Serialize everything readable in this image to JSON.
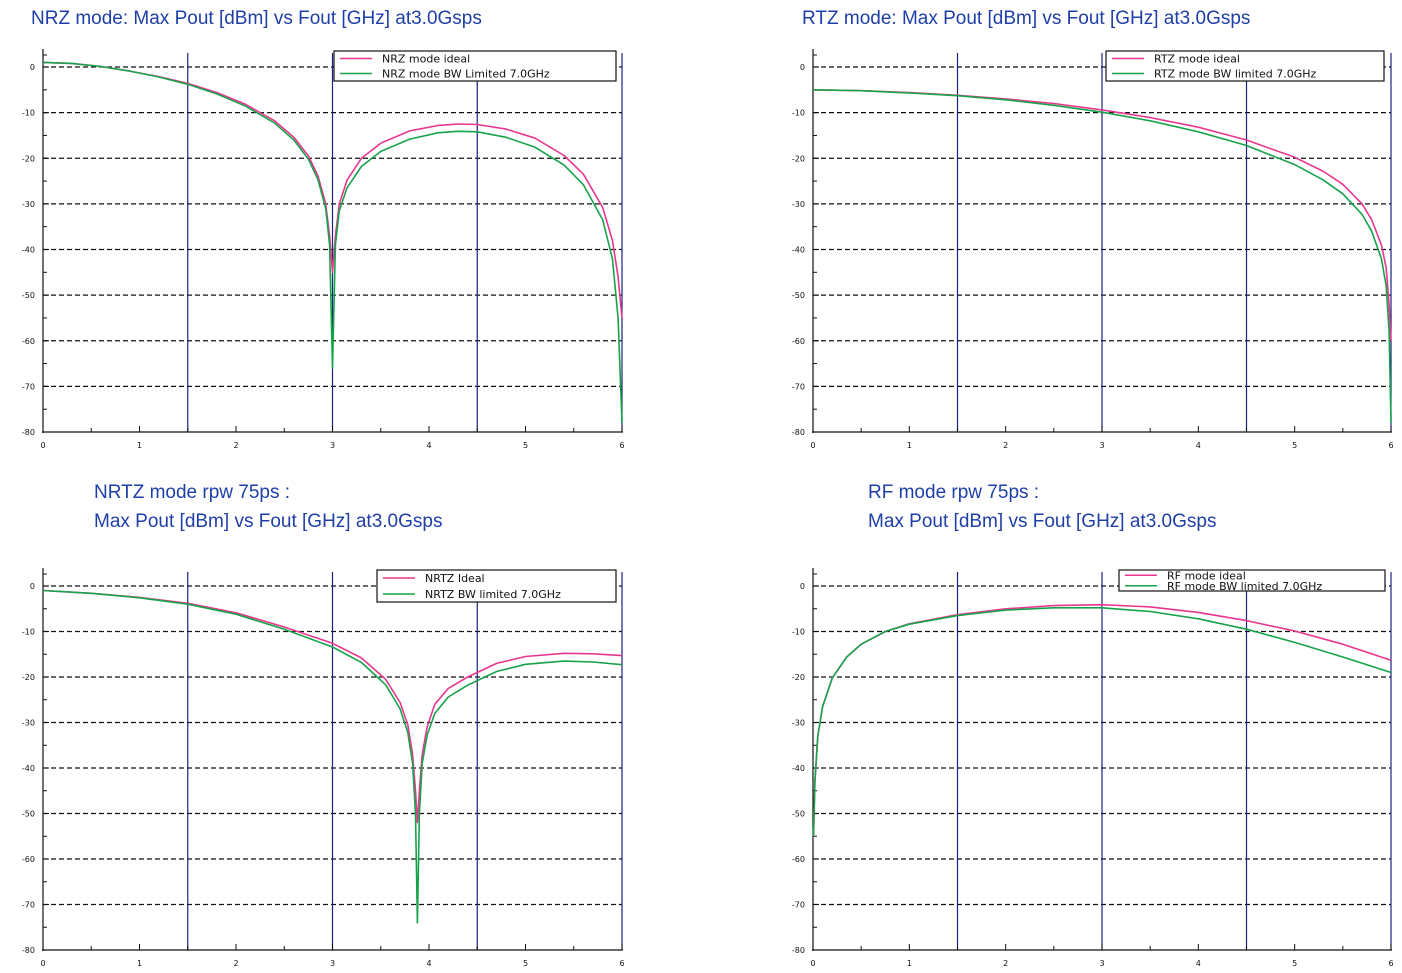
{
  "chart_data": [
    {
      "type": "line",
      "title": [
        "NRZ mode: Max Pout [dBm] vs Fout [GHz] at3.0Gsps"
      ],
      "xlim": [
        0,
        6
      ],
      "ylim": [
        -80,
        0
      ],
      "xticks": [
        "0",
        "1",
        "2",
        "3",
        "4",
        "5",
        "6"
      ],
      "yticks": [
        "0",
        "-10",
        "-20",
        "-30",
        "-40",
        "-50",
        "-60",
        "-70",
        "-80"
      ],
      "vlines": [
        1.5,
        3,
        4.5,
        6
      ],
      "grid": "dashed horizontal",
      "legend_position": "top-right",
      "series": [
        {
          "name": "NRZ mode ideal",
          "color": "#e8368f",
          "x": [
            0,
            0.3,
            0.6,
            0.9,
            1.2,
            1.5,
            1.8,
            2.1,
            2.4,
            2.6,
            2.75,
            2.85,
            2.93,
            2.97,
            3.0,
            3.03,
            3.07,
            3.15,
            3.3,
            3.5,
            3.8,
            4.1,
            4.3,
            4.5,
            4.8,
            5.1,
            5.4,
            5.6,
            5.8,
            5.9,
            5.96,
            6.0
          ],
          "y": [
            1,
            0.8,
            0.1,
            -0.9,
            -2.1,
            -3.6,
            -5.6,
            -8.2,
            -11.8,
            -15.4,
            -19.5,
            -23.9,
            -30,
            -37,
            -45,
            -37,
            -30,
            -24.8,
            -20,
            -16.7,
            -14,
            -12.8,
            -12.5,
            -12.6,
            -13.6,
            -15.6,
            -19.4,
            -23.5,
            -30.8,
            -38,
            -46,
            -55
          ]
        },
        {
          "name": "NRZ mode BW Limited 7.0GHz",
          "color": "#17a34a",
          "x": [
            0,
            0.3,
            0.6,
            0.9,
            1.2,
            1.5,
            1.8,
            2.1,
            2.4,
            2.6,
            2.75,
            2.85,
            2.93,
            2.97,
            3.0,
            3.03,
            3.07,
            3.15,
            3.3,
            3.5,
            3.8,
            4.1,
            4.3,
            4.5,
            4.8,
            5.1,
            5.4,
            5.6,
            5.8,
            5.9,
            5.96,
            6.0
          ],
          "y": [
            1,
            0.8,
            0.1,
            -0.9,
            -2.2,
            -3.8,
            -5.9,
            -8.6,
            -12.3,
            -16,
            -20.2,
            -24.7,
            -31,
            -39,
            -66,
            -39,
            -31.5,
            -26.5,
            -21.8,
            -18.5,
            -15.8,
            -14.4,
            -14.1,
            -14.2,
            -15.4,
            -17.6,
            -21.5,
            -25.8,
            -33.5,
            -42,
            -55,
            -78
          ]
        }
      ]
    },
    {
      "type": "line",
      "title": [
        "RTZ mode: Max Pout [dBm] vs Fout [GHz] at3.0Gsps"
      ],
      "xlim": [
        0,
        6
      ],
      "ylim": [
        -80,
        0
      ],
      "xticks": [
        "0",
        "1",
        "2",
        "3",
        "4",
        "5",
        "6"
      ],
      "yticks": [
        "0",
        "-10",
        "-20",
        "-30",
        "-40",
        "-50",
        "-60",
        "-70",
        "-80"
      ],
      "vlines": [
        1.5,
        3,
        4.5,
        6
      ],
      "grid": "dashed horizontal",
      "legend_position": "top-right",
      "series": [
        {
          "name": "RTZ mode ideal",
          "color": "#e8368f",
          "x": [
            0,
            0.5,
            1,
            1.5,
            2,
            2.5,
            3,
            3.5,
            4,
            4.5,
            5,
            5.3,
            5.5,
            5.7,
            5.8,
            5.9,
            5.95,
            5.98,
            6.0
          ],
          "y": [
            -5,
            -5.2,
            -5.6,
            -6.2,
            -7,
            -8,
            -9.4,
            -11.1,
            -13.2,
            -16,
            -19.8,
            -22.9,
            -25.7,
            -30,
            -33.5,
            -39,
            -44,
            -52,
            -60
          ]
        },
        {
          "name": "RTZ mode BW limited 7.0GHz",
          "color": "#17a34a",
          "x": [
            0,
            0.5,
            1,
            1.5,
            2,
            2.5,
            3,
            3.5,
            4,
            4.5,
            5,
            5.3,
            5.5,
            5.7,
            5.8,
            5.9,
            5.95,
            5.98,
            6.0
          ],
          "y": [
            -5,
            -5.2,
            -5.7,
            -6.3,
            -7.2,
            -8.4,
            -9.9,
            -11.8,
            -14.2,
            -17.2,
            -21.4,
            -24.8,
            -27.8,
            -32.3,
            -36,
            -42,
            -48,
            -58,
            -78
          ]
        }
      ]
    },
    {
      "type": "line",
      "title": [
        "NRTZ mode rpw 75ps :",
        "Max Pout [dBm] vs Fout [GHz] at3.0Gsps"
      ],
      "xlim": [
        0,
        6
      ],
      "ylim": [
        -80,
        0
      ],
      "xticks": [
        "0",
        "1",
        "2",
        "3",
        "4",
        "5",
        "6"
      ],
      "yticks": [
        "0",
        "-10",
        "-20",
        "-30",
        "-40",
        "-50",
        "-60",
        "-70",
        "-80"
      ],
      "vlines": [
        1.5,
        3,
        4.5,
        6
      ],
      "grid": "dashed horizontal",
      "legend_position": "top-right",
      "series": [
        {
          "name": "NRTZ Ideal",
          "color": "#e8368f",
          "x": [
            0,
            0.5,
            1,
            1.5,
            2,
            2.5,
            3,
            3.3,
            3.55,
            3.7,
            3.78,
            3.83,
            3.86,
            3.88,
            3.9,
            3.93,
            3.98,
            4.06,
            4.2,
            4.4,
            4.7,
            5,
            5.4,
            5.7,
            6.0
          ],
          "y": [
            -1,
            -1.6,
            -2.5,
            -3.8,
            -5.9,
            -9,
            -12.6,
            -15.8,
            -20.5,
            -25.6,
            -30.5,
            -37,
            -45,
            -52,
            -45,
            -37,
            -31,
            -26,
            -22.5,
            -20,
            -17,
            -15.5,
            -14.8,
            -14.9,
            -15.3
          ]
        },
        {
          "name": "NRTZ BW limited 7.0GHz",
          "color": "#17a34a",
          "x": [
            0,
            0.5,
            1,
            1.5,
            2,
            2.5,
            3,
            3.3,
            3.55,
            3.7,
            3.78,
            3.83,
            3.86,
            3.88,
            3.9,
            3.93,
            3.98,
            4.06,
            4.2,
            4.4,
            4.7,
            5,
            5.4,
            5.7,
            6.0
          ],
          "y": [
            -1,
            -1.6,
            -2.6,
            -4,
            -6.2,
            -9.5,
            -13.4,
            -16.8,
            -21.7,
            -27,
            -32.2,
            -39,
            -50,
            -74,
            -50,
            -39,
            -32.8,
            -28,
            -24.4,
            -21.8,
            -18.8,
            -17.2,
            -16.5,
            -16.7,
            -17.3
          ]
        }
      ]
    },
    {
      "type": "line",
      "title": [
        "RF mode rpw 75ps :",
        "Max Pout [dBm] vs Fout [GHz] at3.0Gsps"
      ],
      "xlim": [
        0,
        6
      ],
      "ylim": [
        -80,
        0
      ],
      "xticks": [
        "0",
        "1",
        "2",
        "3",
        "4",
        "5",
        "6"
      ],
      "yticks": [
        "0",
        "-10",
        "-20",
        "-30",
        "-40",
        "-50",
        "-60",
        "-70",
        "-80"
      ],
      "vlines": [
        1.5,
        3,
        4.5,
        6
      ],
      "grid": "dashed horizontal",
      "legend_position": "top-right",
      "series": [
        {
          "name": "RF mode ideal",
          "color": "#e8368f",
          "x": [
            0.005,
            0.02,
            0.05,
            0.1,
            0.2,
            0.35,
            0.5,
            0.75,
            1,
            1.5,
            2,
            2.5,
            3,
            3.5,
            4,
            4.5,
            5,
            5.5,
            6.0
          ],
          "y": [
            -55,
            -43,
            -33,
            -26.5,
            -20.2,
            -15.6,
            -12.8,
            -10,
            -8.3,
            -6.3,
            -5,
            -4.3,
            -4.1,
            -4.6,
            -5.8,
            -7.6,
            -9.9,
            -12.8,
            -16.3
          ]
        },
        {
          "name": "RF mode BW limited 7.0GHz",
          "color": "#17a34a",
          "x": [
            0.005,
            0.02,
            0.05,
            0.1,
            0.2,
            0.35,
            0.5,
            0.75,
            1,
            1.5,
            2,
            2.5,
            3,
            3.5,
            4,
            4.5,
            5,
            5.5,
            6.0
          ],
          "y": [
            -55,
            -43,
            -33,
            -26.5,
            -20.2,
            -15.6,
            -12.8,
            -10,
            -8.4,
            -6.5,
            -5.3,
            -4.8,
            -4.8,
            -5.6,
            -7.2,
            -9.5,
            -12.4,
            -15.6,
            -19
          ]
        }
      ]
    }
  ]
}
